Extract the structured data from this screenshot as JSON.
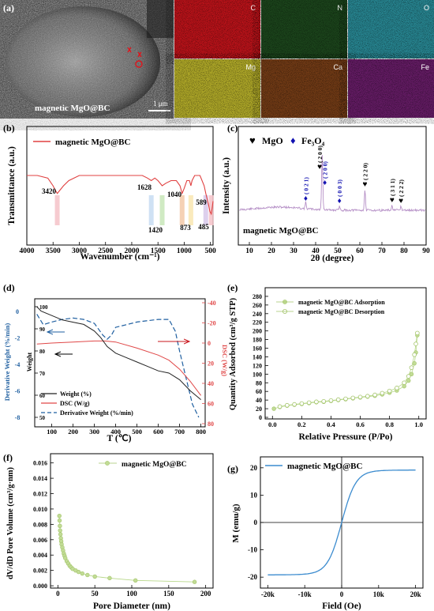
{
  "panel_labels": {
    "a": "(a)",
    "b": "(b)",
    "c": "(c)",
    "d": "(d)",
    "e": "(e)",
    "f": "(f)",
    "g": "(g)"
  },
  "panel_a": {
    "sem_label": "magnetic MgO@BC",
    "scale_bar": "1 μm",
    "maps": [
      {
        "label": "C",
        "color": "#c8141b"
      },
      {
        "label": "N",
        "color": "#1d4a1d"
      },
      {
        "label": "O",
        "color": "#2a8f9c"
      },
      {
        "label": "Mg",
        "color": "#bdb52b"
      },
      {
        "label": "Ca",
        "color": "#7a3f17"
      },
      {
        "label": "Fe",
        "color": "#6b1d6b"
      }
    ]
  },
  "chart_data": [
    {
      "panel": "b",
      "type": "line",
      "legend": "magnetic MgO@BC",
      "xlabel": "Wavenumber (cm⁻¹)",
      "ylabel": "Transmittance (a.u.)",
      "xlim": [
        4000,
        500
      ],
      "xticks": [
        4000,
        3500,
        3000,
        2500,
        2000,
        1500,
        1000,
        500
      ],
      "annotations": [
        "3420",
        "1628",
        "1420",
        "1040",
        "873",
        "589",
        "485"
      ],
      "x": [
        4000,
        3800,
        3600,
        3500,
        3450,
        3420,
        3380,
        3300,
        3200,
        3000,
        2800,
        2600,
        2400,
        2200,
        2000,
        1800,
        1700,
        1628,
        1560,
        1500,
        1420,
        1350,
        1250,
        1150,
        1080,
        1040,
        1000,
        950,
        900,
        873,
        850,
        800,
        700,
        620,
        589,
        540,
        510,
        485,
        470,
        450
      ],
      "y": [
        84,
        84,
        83,
        80,
        78,
        77,
        78,
        80,
        82,
        84,
        84,
        84,
        84,
        84,
        84,
        84,
        83,
        82,
        83,
        82,
        80,
        81,
        82,
        82,
        80,
        77,
        79,
        82,
        82,
        80,
        82,
        84,
        84,
        80,
        77,
        73,
        70,
        69,
        71,
        74
      ]
    },
    {
      "panel": "c",
      "type": "line",
      "xlabel": "2θ (degree)",
      "ylabel": "Intensity (a.u.)",
      "xlim": [
        5,
        90
      ],
      "xticks": [
        10,
        20,
        30,
        40,
        50,
        60,
        70,
        80,
        90
      ],
      "legend": [
        {
          "symbol": "♥",
          "label": "MgO"
        },
        {
          "symbol": "♦",
          "label": "Fe₃O₄"
        }
      ],
      "series_label": "magnetic MgO@BC",
      "peaks": [
        {
          "x": 35.5,
          "h": 8,
          "label": "( 0 2 1)",
          "marker": "♦",
          "color": "#1010b0"
        },
        {
          "x": 42.9,
          "h": 48,
          "label": "( 2 0 0)",
          "marker": "♥",
          "color": "#000"
        },
        {
          "x": 43.1,
          "h": 28,
          "label": "( 2 0 0)",
          "marker": "♦",
          "color": "#1010b0"
        },
        {
          "x": 50.8,
          "h": 5,
          "label": "( 0 0 3)",
          "marker": "♦",
          "color": "#1010b0"
        },
        {
          "x": 62.3,
          "h": 26,
          "label": "( 2 2 0)",
          "marker": "♥",
          "color": "#000"
        },
        {
          "x": 74.6,
          "h": 6,
          "label": "( 3 1 1)",
          "marker": "♥",
          "color": "#000"
        },
        {
          "x": 78.6,
          "h": 5,
          "label": "( 2 2 2)",
          "marker": "♥",
          "color": "#000"
        }
      ]
    },
    {
      "panel": "d",
      "type": "line",
      "xlabel": "T (℃)",
      "ylabel_left": "Derivative Weight (%/min)",
      "ylabel_right": "DSC (W/g)",
      "ylabel_inner": "Weight",
      "xlim": [
        20,
        820
      ],
      "xticks": [
        100,
        200,
        300,
        400,
        500,
        600,
        700,
        800
      ],
      "yticks_left": [
        0,
        -2,
        -4,
        -6,
        -8
      ],
      "yticks_inner": [
        100,
        90,
        80,
        70,
        60,
        50
      ],
      "yticks_right": [
        -40,
        -20,
        0,
        20,
        40,
        60,
        80
      ],
      "legend": [
        "Weight (%)",
        "DSC (W/g)",
        "Derivative Weight (%/min)"
      ],
      "weight": {
        "x": [
          30,
          50,
          100,
          150,
          200,
          250,
          300,
          330,
          360,
          400,
          450,
          500,
          550,
          600,
          650,
          700,
          750,
          800
        ],
        "y": [
          100,
          98,
          96,
          94,
          93,
          92,
          89,
          86,
          82,
          79,
          77,
          75,
          73,
          71,
          70,
          67,
          62,
          58
        ]
      },
      "dsc": {
        "x": [
          30,
          100,
          200,
          300,
          350,
          400,
          500,
          600,
          650,
          700,
          750,
          800
        ],
        "y": [
          1,
          0,
          -1,
          -2,
          -2,
          -1,
          5,
          12,
          17,
          26,
          38,
          52
        ]
      },
      "deriv": {
        "x": [
          30,
          60,
          100,
          150,
          200,
          250,
          300,
          340,
          360,
          380,
          400,
          450,
          500,
          550,
          600,
          650,
          680,
          700,
          730,
          760,
          790
        ],
        "y": [
          -0.2,
          -1.0,
          -0.8,
          -0.6,
          -0.5,
          -0.6,
          -0.9,
          -1.8,
          -2.1,
          -1.8,
          -1.2,
          -1.0,
          -0.8,
          -0.7,
          -0.6,
          -0.6,
          -1.5,
          -3.0,
          -5.0,
          -7.0,
          -8.0
        ]
      }
    },
    {
      "panel": "e",
      "type": "scatter",
      "xlabel": "Relative Pressure (P/Po)",
      "ylabel": "Quantity Adsorbed (cm³/g STP)",
      "xlim": [
        -0.05,
        1.05
      ],
      "ylim": [
        0,
        300
      ],
      "xticks": [
        0.0,
        0.2,
        0.4,
        0.6,
        0.8,
        1.0
      ],
      "yticks": [
        0,
        20,
        40,
        60,
        80,
        100,
        120,
        140,
        160,
        180,
        200,
        220,
        240,
        260,
        280
      ],
      "series": [
        {
          "name": "magnetic MgO@BC Adsorption",
          "x": [
            0.01,
            0.05,
            0.1,
            0.15,
            0.2,
            0.25,
            0.3,
            0.35,
            0.4,
            0.45,
            0.5,
            0.55,
            0.6,
            0.65,
            0.7,
            0.75,
            0.8,
            0.85,
            0.9,
            0.93,
            0.95,
            0.97,
            0.98,
            0.99
          ],
          "y": [
            20,
            24,
            27,
            29,
            31,
            33,
            35,
            36,
            38,
            40,
            42,
            44,
            46,
            48,
            50,
            53,
            57,
            62,
            72,
            85,
            100,
            125,
            150,
            190
          ]
        },
        {
          "name": "magnetic MgO@BC Desorption",
          "x": [
            0.99,
            0.98,
            0.97,
            0.95,
            0.93,
            0.9,
            0.85,
            0.8,
            0.75,
            0.7,
            0.65,
            0.6,
            0.55,
            0.5,
            0.45,
            0.4,
            0.35,
            0.3,
            0.25,
            0.2,
            0.15,
            0.1,
            0.05
          ],
          "y": [
            195,
            170,
            145,
            115,
            95,
            80,
            68,
            61,
            56,
            52,
            49,
            47,
            45,
            43,
            41,
            39,
            37,
            36,
            34,
            32,
            30,
            28,
            25
          ]
        }
      ]
    },
    {
      "panel": "f",
      "type": "scatter",
      "legend": "magnetic MgO@BC",
      "xlabel": "Pore Diameter (nm)",
      "ylabel": "dV/dD Pore Volume (cm³/g·nm)",
      "xlim": [
        -10,
        210
      ],
      "ylim": [
        -0.0003,
        0.0172
      ],
      "xticks": [
        0,
        50,
        100,
        150,
        200
      ],
      "yticks": [
        0.0,
        0.002,
        0.004,
        0.006,
        0.008,
        0.01,
        0.012,
        0.014,
        0.016
      ],
      "x": [
        2,
        2.3,
        2.7,
        3,
        3.5,
        4,
        4.5,
        5,
        6,
        7,
        8,
        9,
        10,
        12,
        14,
        16,
        18,
        20,
        24,
        28,
        33,
        40,
        50,
        70,
        105,
        185
      ],
      "y": [
        0.0091,
        0.0085,
        0.0078,
        0.0072,
        0.0067,
        0.0062,
        0.0058,
        0.0054,
        0.005,
        0.0046,
        0.0042,
        0.0039,
        0.0036,
        0.0032,
        0.0029,
        0.0026,
        0.0024,
        0.0022,
        0.002,
        0.0018,
        0.0016,
        0.0014,
        0.0012,
        0.001,
        0.0007,
        0.0005
      ]
    },
    {
      "panel": "g",
      "type": "line",
      "legend": "magnetic MgO@BC",
      "xlabel": "Field (Oe)",
      "ylabel": "M (emu/g)",
      "xlim": [
        -22000,
        22000
      ],
      "ylim": [
        -24,
        24
      ],
      "xticks": [
        -20000,
        -10000,
        0,
        10000,
        20000
      ],
      "xtick_labels": [
        "-20k",
        "-10k",
        "0",
        "10k",
        "20k"
      ],
      "yticks": [
        -20,
        -10,
        0,
        10,
        20
      ],
      "ms": 19.2,
      "h0": 2100
    }
  ]
}
